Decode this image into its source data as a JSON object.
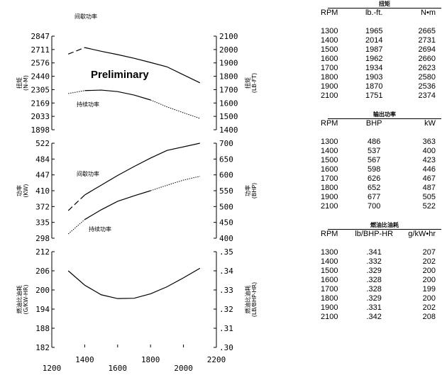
{
  "chart_data": [
    {
      "type": "line",
      "panel": "torque",
      "ylabel_left": "扭矩\n(N-M)",
      "ylabel_right": "扭矩\n(LB-FT)",
      "yticks_left": [
        "2847",
        "2711",
        "2576",
        "2440",
        "2305",
        "2169",
        "2033",
        "1898"
      ],
      "ylim": [
        1898,
        2847
      ],
      "yticks_right": [
        "2100",
        "2000",
        "1900",
        "1800",
        "1700",
        "1600",
        "1500",
        "1400"
      ],
      "annotation": "Preliminary",
      "series": [
        {
          "name": "间歇功率",
          "x": [
            1300,
            1400,
            1500,
            1600,
            1700,
            1800,
            1900,
            2100
          ],
          "values": [
            2665,
            2731,
            2694,
            2660,
            2623,
            2580,
            2536,
            2374
          ],
          "dashed_until": 1400
        },
        {
          "name": "持续功率",
          "x": [
            1300,
            1400,
            1500,
            1600,
            1700,
            1800,
            1900,
            2000,
            2100
          ],
          "values": [
            2265,
            2295,
            2300,
            2285,
            2250,
            2200,
            2130,
            2070,
            2013
          ],
          "dotted_before": 1400,
          "dotted_after": 1800
        }
      ]
    },
    {
      "type": "line",
      "panel": "power",
      "ylabel_left": "功率\n(KW)",
      "ylabel_right": "功率\n(BHP)",
      "yticks_left": [
        "522",
        "484",
        "447",
        "410",
        "372",
        "335",
        "298"
      ],
      "ylim": [
        298,
        522
      ],
      "yticks_right": [
        "700",
        "650",
        "600",
        "550",
        "500",
        "450",
        "400"
      ],
      "series": [
        {
          "name": "间歇功率",
          "x": [
            1300,
            1400,
            1500,
            1600,
            1700,
            1800,
            1900,
            2100
          ],
          "values": [
            363,
            400,
            423,
            446,
            467,
            487,
            505,
            522
          ],
          "dashed_until": 1400
        },
        {
          "name": "持续功率",
          "x": [
            1300,
            1400,
            1500,
            1600,
            1700,
            1800,
            1900,
            2000,
            2100
          ],
          "values": [
            308,
            342,
            365,
            385,
            398,
            410,
            423,
            435,
            444
          ],
          "dotted_before": 1400,
          "dotted_after": 1800
        }
      ]
    },
    {
      "type": "line",
      "panel": "bsfc",
      "ylabel_left": "燃油比油耗\n(G/KW-HR)",
      "ylabel_right": "燃油比油耗\n(LB/BHP-HR)",
      "yticks_left": [
        "212",
        "206",
        "200",
        "194",
        "188",
        "182"
      ],
      "ylim": [
        182,
        212
      ],
      "yticks_right": [
        ".35",
        ".34",
        ".33",
        ".32",
        ".31",
        ".30"
      ],
      "series": [
        {
          "x": [
            1300,
            1400,
            1500,
            1600,
            1700,
            1800,
            1900,
            2000,
            2100
          ],
          "values": [
            206,
            201.5,
            198.5,
            197.3,
            197.4,
            198.8,
            201,
            203.8,
            206.8
          ]
        }
      ]
    }
  ],
  "xaxis": {
    "ticks": [
      "1200",
      "1400",
      "1600",
      "1800",
      "2000",
      "2200"
    ],
    "xlim": [
      1200,
      2200
    ]
  },
  "tables": [
    {
      "caption": "扭矩",
      "headers": [
        "RPM",
        "lb.-ft.",
        "N•m"
      ],
      "rows": [
        [
          "1300",
          "1965",
          "2665"
        ],
        [
          "1400",
          "2014",
          "2731"
        ],
        [
          "1500",
          "1987",
          "2694"
        ],
        [
          "1600",
          "1962",
          "2660"
        ],
        [
          "1700",
          "1934",
          "2623"
        ],
        [
          "1800",
          "1903",
          "2580"
        ],
        [
          "1900",
          "1870",
          "2536"
        ],
        [
          "2100",
          "1751",
          "2374"
        ]
      ]
    },
    {
      "caption": "输出功率",
      "headers": [
        "RPM",
        "BHP",
        "kW"
      ],
      "rows": [
        [
          "1300",
          "486",
          "363"
        ],
        [
          "1400",
          "537",
          "400"
        ],
        [
          "1500",
          "567",
          "423"
        ],
        [
          "1600",
          "598",
          "446"
        ],
        [
          "1700",
          "626",
          "467"
        ],
        [
          "1800",
          "652",
          "487"
        ],
        [
          "1900",
          "677",
          "505"
        ],
        [
          "2100",
          "700",
          "522"
        ]
      ]
    },
    {
      "caption": "燃油比油耗",
      "headers": [
        "RPM",
        "lb/BHP-HR",
        "g/kW•hr"
      ],
      "rows": [
        [
          "1300",
          ".341",
          "207"
        ],
        [
          "1400",
          ".332",
          "202"
        ],
        [
          "1500",
          ".329",
          "200"
        ],
        [
          "1600",
          ".328",
          "200"
        ],
        [
          "1700",
          ".328",
          "199"
        ],
        [
          "1800",
          ".329",
          "200"
        ],
        [
          "1900",
          ".331",
          "202"
        ],
        [
          "2100",
          ".342",
          "208"
        ]
      ]
    }
  ]
}
